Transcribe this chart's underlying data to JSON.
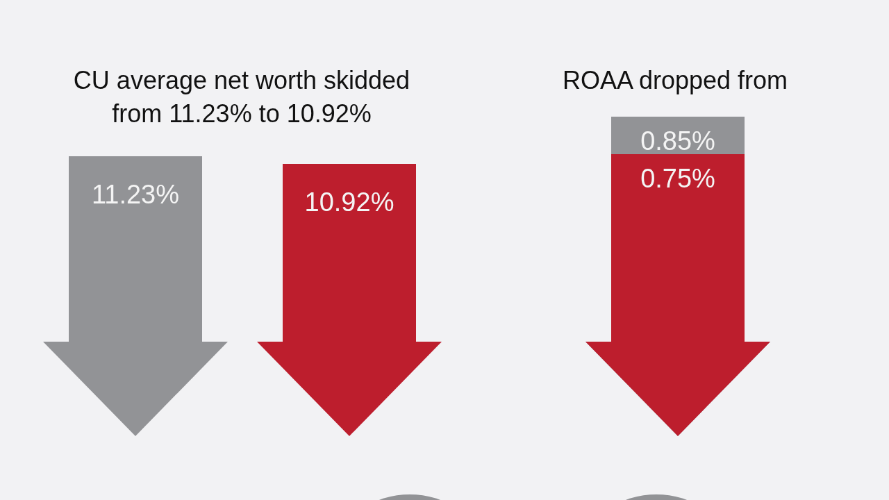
{
  "chart_data": [
    {
      "type": "other",
      "title": "CU average net worth skidded\nfrom 11.23% to 10.92%",
      "values": [
        11.23,
        10.92
      ],
      "value_labels": [
        "11.23%",
        "10.92%"
      ],
      "colors": [
        "#929396",
        "#bd1e2d"
      ]
    },
    {
      "type": "other",
      "title": "ROAA dropped from",
      "values": [
        0.85,
        0.75
      ],
      "value_labels": [
        "0.85%",
        "0.75%"
      ],
      "colors": [
        "#929396",
        "#bd1e2d"
      ]
    }
  ]
}
